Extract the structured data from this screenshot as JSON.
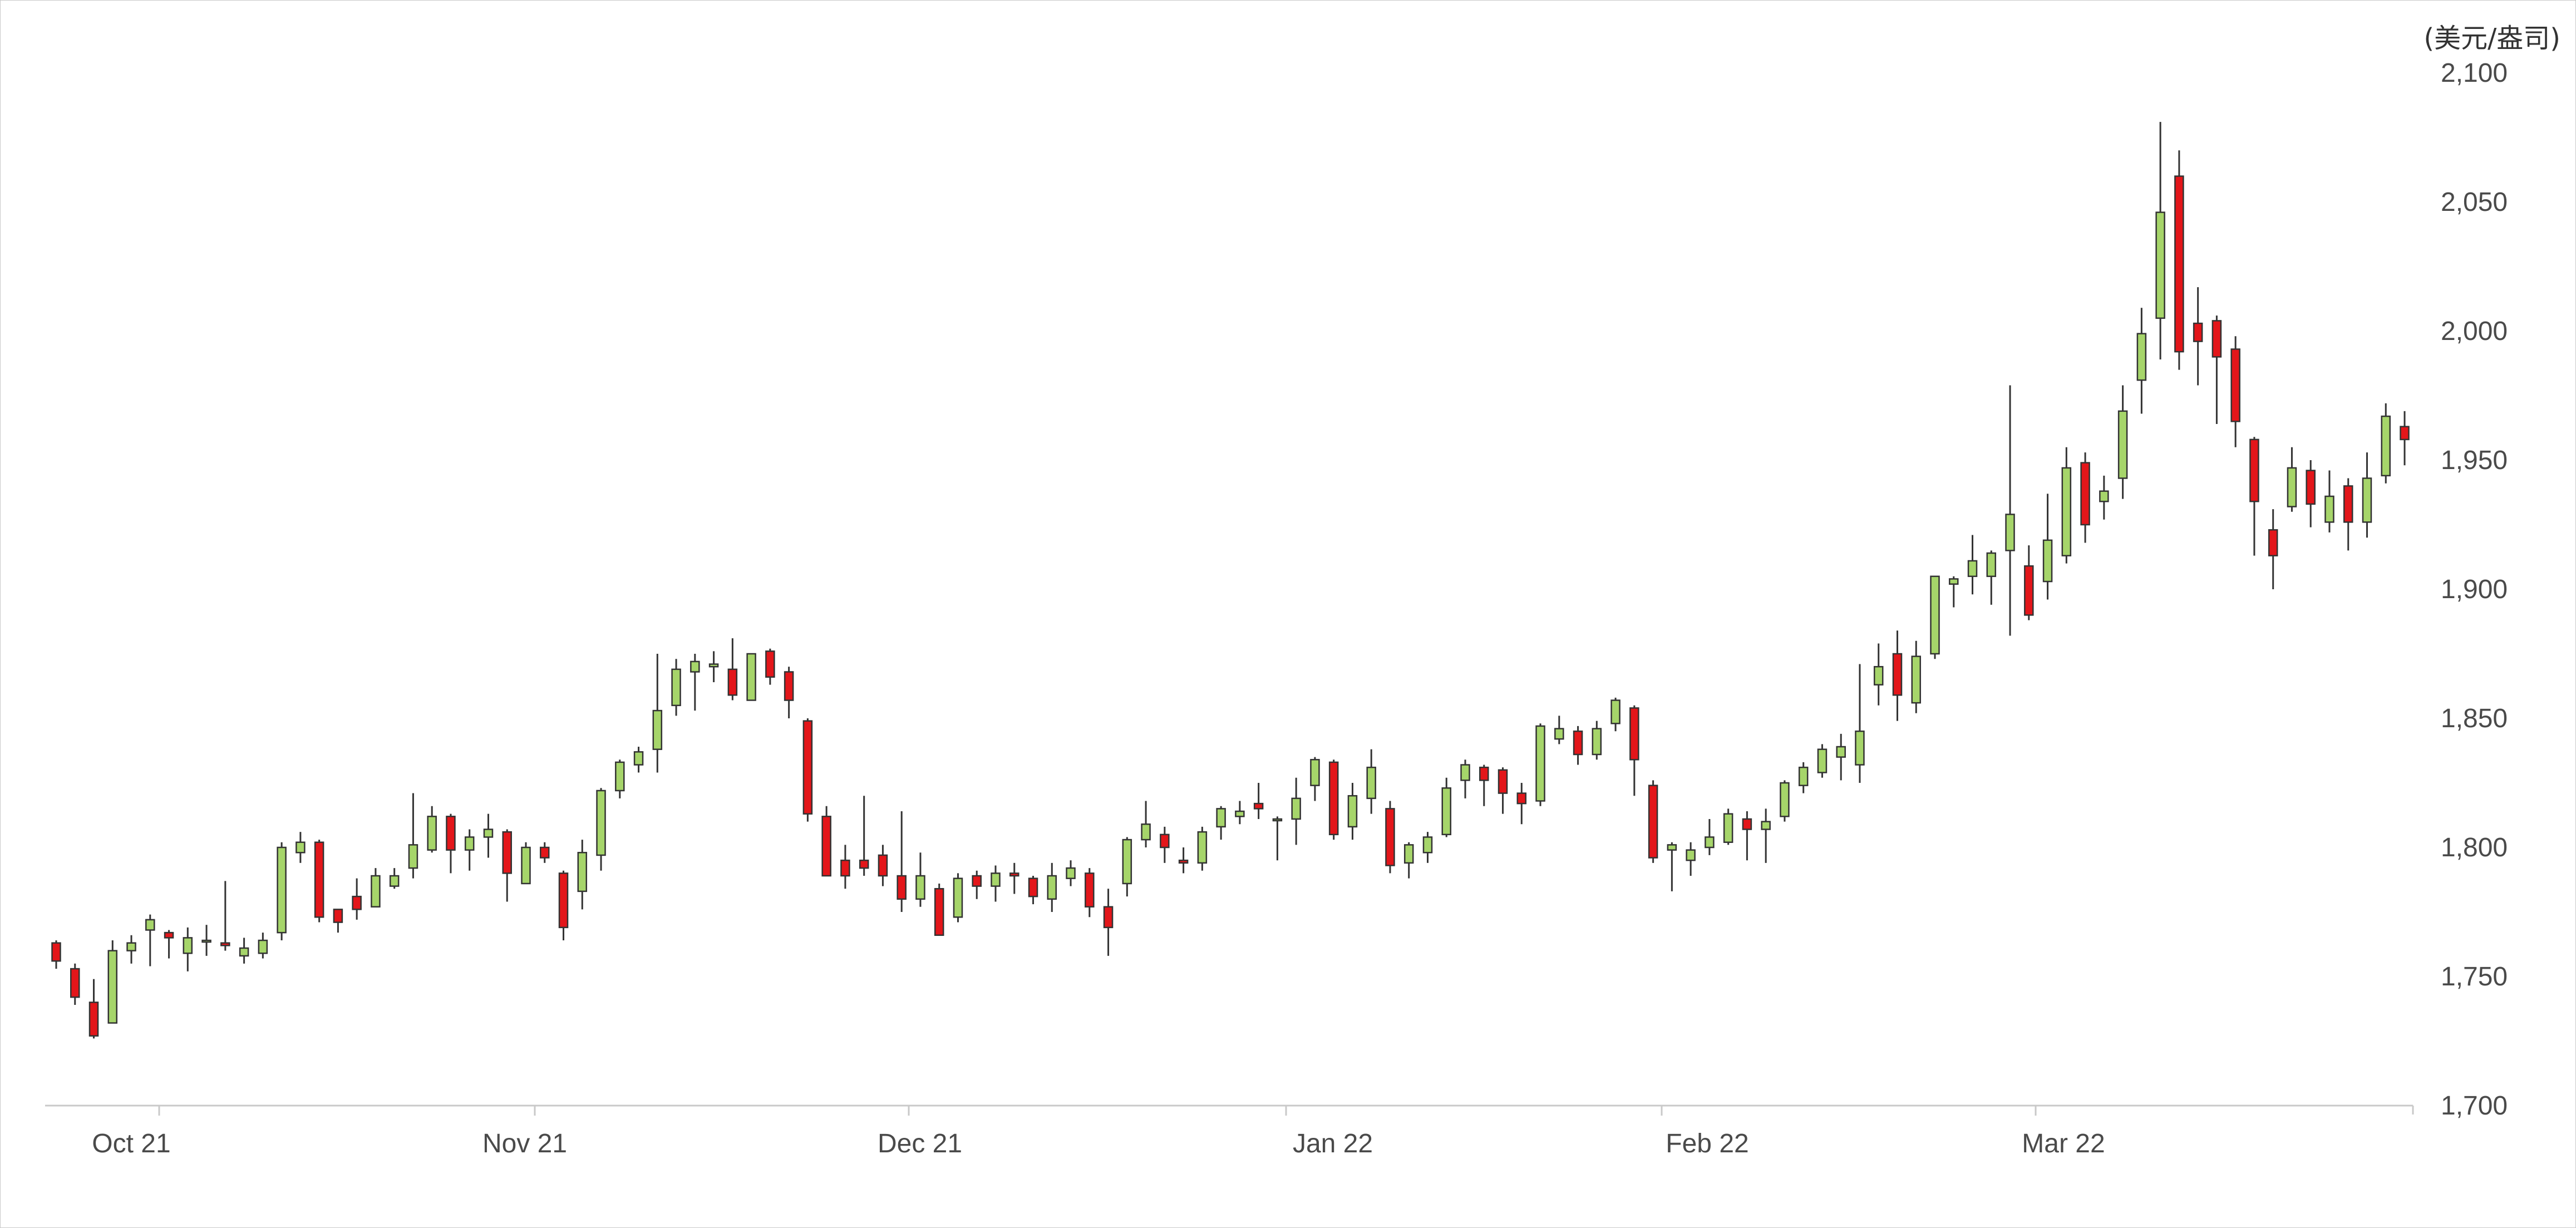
{
  "chart_data": {
    "type": "candlestick",
    "y_unit_label": "(美元/盎司)",
    "ylim": [
      1700,
      2100
    ],
    "y_ticks": [
      "1,700",
      "1,750",
      "1,800",
      "1,850",
      "1,900",
      "1,950",
      "2,000",
      "2,050",
      "2,100"
    ],
    "y_tick_values": [
      1700,
      1750,
      1800,
      1850,
      1900,
      1950,
      2000,
      2050,
      2100
    ],
    "y_axis_side": "right",
    "grid": false,
    "legend": "none",
    "x_ticks": [
      "Oct 21",
      "Nov 21",
      "Dec 21",
      "Jan 22",
      "Feb 22",
      "Mar 22"
    ],
    "colors": {
      "up": "#a6d56a",
      "down": "#e3161a",
      "wick": "#333333",
      "axis": "#c9c9c9",
      "text": "#4a4a4a"
    },
    "fields": [
      "open",
      "high",
      "low",
      "close"
    ],
    "candles": [
      [
        1763,
        1764,
        1753,
        1756
      ],
      [
        1753,
        1755,
        1739,
        1742
      ],
      [
        1740,
        1749,
        1726,
        1727
      ],
      [
        1732,
        1764,
        1732,
        1760
      ],
      [
        1760,
        1766,
        1755,
        1763
      ],
      [
        1768,
        1774,
        1754,
        1772
      ],
      [
        1767,
        1768,
        1757,
        1765
      ],
      [
        1759,
        1769,
        1752,
        1765
      ],
      [
        1764,
        1770,
        1758,
        1764
      ],
      [
        1763,
        1787,
        1760,
        1762
      ],
      [
        1758,
        1765,
        1755,
        1761
      ],
      [
        1759,
        1767,
        1757,
        1764
      ],
      [
        1767,
        1802,
        1764,
        1800
      ],
      [
        1798,
        1806,
        1794,
        1802
      ],
      [
        1802,
        1803,
        1771,
        1773
      ],
      [
        1776,
        1776,
        1767,
        1771
      ],
      [
        1781,
        1788,
        1772,
        1776
      ],
      [
        1777,
        1792,
        1777,
        1789
      ],
      [
        1785,
        1792,
        1784,
        1789
      ],
      [
        1792,
        1821,
        1788,
        1801
      ],
      [
        1799,
        1816,
        1798,
        1812
      ],
      [
        1812,
        1813,
        1790,
        1799
      ],
      [
        1799,
        1807,
        1791,
        1804
      ],
      [
        1804,
        1813,
        1796,
        1807
      ],
      [
        1806,
        1807,
        1779,
        1790
      ],
      [
        1786,
        1802,
        1786,
        1800
      ],
      [
        1800,
        1802,
        1794,
        1796
      ],
      [
        1790,
        1791,
        1764,
        1769
      ],
      [
        1783,
        1803,
        1776,
        1798
      ],
      [
        1797,
        1823,
        1791,
        1822
      ],
      [
        1822,
        1834,
        1819,
        1833
      ],
      [
        1832,
        1839,
        1829,
        1837
      ],
      [
        1838,
        1875,
        1829,
        1853
      ],
      [
        1855,
        1873,
        1851,
        1869
      ],
      [
        1868,
        1875,
        1853,
        1872
      ],
      [
        1870,
        1876,
        1864,
        1871
      ],
      [
        1869,
        1881,
        1857,
        1859
      ],
      [
        1857,
        1875,
        1857,
        1875
      ],
      [
        1876,
        1877,
        1863,
        1866
      ],
      [
        1868,
        1870,
        1850,
        1857
      ],
      [
        1849,
        1850,
        1810,
        1813
      ],
      [
        1812,
        1816,
        1789,
        1789
      ],
      [
        1795,
        1801,
        1784,
        1789
      ],
      [
        1795,
        1820,
        1789,
        1792
      ],
      [
        1797,
        1801,
        1785,
        1789
      ],
      [
        1789,
        1814,
        1775,
        1780
      ],
      [
        1780,
        1798,
        1777,
        1789
      ],
      [
        1784,
        1786,
        1766,
        1766
      ],
      [
        1773,
        1790,
        1771,
        1788
      ],
      [
        1789,
        1791,
        1780,
        1785
      ],
      [
        1785,
        1793,
        1779,
        1790
      ],
      [
        1790,
        1794,
        1782,
        1789
      ],
      [
        1788,
        1789,
        1778,
        1781
      ],
      [
        1780,
        1794,
        1775,
        1789
      ],
      [
        1788,
        1795,
        1785,
        1792
      ],
      [
        1790,
        1792,
        1773,
        1777
      ],
      [
        1777,
        1784,
        1758,
        1769
      ],
      [
        1786,
        1804,
        1781,
        1803
      ],
      [
        1803,
        1818,
        1800,
        1809
      ],
      [
        1805,
        1808,
        1794,
        1800
      ],
      [
        1795,
        1800,
        1790,
        1794
      ],
      [
        1794,
        1808,
        1791,
        1806
      ],
      [
        1808,
        1816,
        1803,
        1815
      ],
      [
        1812,
        1818,
        1809,
        1814
      ],
      [
        1817,
        1825,
        1811,
        1815
      ],
      [
        1811,
        1812,
        1795,
        1811
      ],
      [
        1811,
        1827,
        1801,
        1819
      ],
      [
        1824,
        1835,
        1818,
        1834
      ],
      [
        1833,
        1834,
        1803,
        1805
      ],
      [
        1808,
        1825,
        1803,
        1820
      ],
      [
        1819,
        1838,
        1813,
        1831
      ],
      [
        1815,
        1818,
        1790,
        1793
      ],
      [
        1794,
        1802,
        1788,
        1801
      ],
      [
        1798,
        1806,
        1794,
        1804
      ],
      [
        1805,
        1827,
        1804,
        1823
      ],
      [
        1826,
        1834,
        1819,
        1832
      ],
      [
        1831,
        1832,
        1816,
        1826
      ],
      [
        1830,
        1831,
        1813,
        1821
      ],
      [
        1821,
        1825,
        1809,
        1817
      ],
      [
        1818,
        1848,
        1816,
        1847
      ],
      [
        1842,
        1851,
        1840,
        1846
      ],
      [
        1845,
        1847,
        1832,
        1836
      ],
      [
        1836,
        1849,
        1834,
        1846
      ],
      [
        1848,
        1858,
        1845,
        1857
      ],
      [
        1854,
        1855,
        1820,
        1834
      ],
      [
        1824,
        1826,
        1794,
        1796
      ],
      [
        1799,
        1802,
        1783,
        1801
      ],
      [
        1795,
        1802,
        1789,
        1799
      ],
      [
        1800,
        1811,
        1797,
        1804
      ],
      [
        1802,
        1815,
        1801,
        1813
      ],
      [
        1811,
        1814,
        1795,
        1807
      ],
      [
        1807,
        1815,
        1794,
        1810
      ],
      [
        1812,
        1826,
        1810,
        1825
      ],
      [
        1824,
        1833,
        1821,
        1831
      ],
      [
        1829,
        1840,
        1827,
        1838
      ],
      [
        1835,
        1844,
        1826,
        1839
      ],
      [
        1832,
        1871,
        1825,
        1845
      ],
      [
        1863,
        1879,
        1855,
        1870
      ],
      [
        1875,
        1884,
        1849,
        1859
      ],
      [
        1856,
        1880,
        1852,
        1874
      ],
      [
        1875,
        1905,
        1873,
        1905
      ],
      [
        1902,
        1905,
        1893,
        1904
      ],
      [
        1905,
        1921,
        1898,
        1911
      ],
      [
        1905,
        1915,
        1894,
        1914
      ],
      [
        1915,
        1979,
        1882,
        1929
      ],
      [
        1909,
        1917,
        1888,
        1890
      ],
      [
        1903,
        1937,
        1896,
        1919
      ],
      [
        1913,
        1955,
        1910,
        1947
      ],
      [
        1949,
        1953,
        1918,
        1925
      ],
      [
        1934,
        1944,
        1927,
        1938
      ],
      [
        1943,
        1979,
        1935,
        1969
      ],
      [
        1981,
        2009,
        1968,
        1999
      ],
      [
        2005,
        2081,
        1989,
        2046
      ],
      [
        2060,
        2070,
        1985,
        1992
      ],
      [
        2003,
        2017,
        1979,
        1996
      ],
      [
        2004,
        2006,
        1964,
        1990
      ],
      [
        1993,
        1998,
        1955,
        1965
      ],
      [
        1958,
        1959,
        1913,
        1934
      ],
      [
        1923,
        1931,
        1900,
        1913
      ],
      [
        1932,
        1955,
        1930,
        1947
      ],
      [
        1946,
        1950,
        1924,
        1933
      ],
      [
        1926,
        1946,
        1922,
        1936
      ],
      [
        1940,
        1943,
        1915,
        1926
      ],
      [
        1926,
        1953,
        1920,
        1943
      ],
      [
        1944,
        1972,
        1941,
        1967
      ],
      [
        1963,
        1969,
        1948,
        1958
      ]
    ]
  }
}
